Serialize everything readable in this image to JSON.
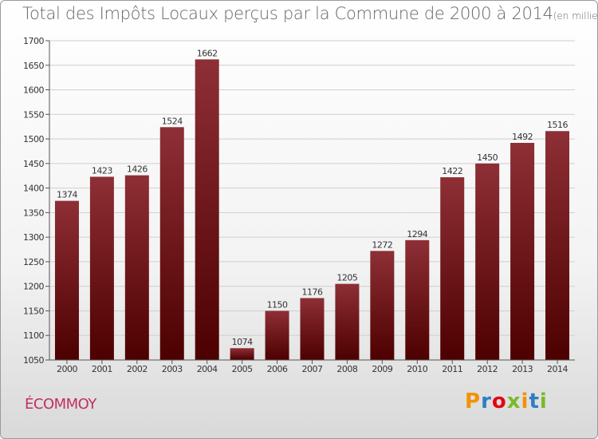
{
  "title": "Total des Impôts Locaux perçus par la Commune de 2000 à 2014",
  "title_unit": "(en milliers d'€)",
  "commune": "ÉCOMMOY",
  "brand": {
    "letters": [
      "P",
      "r",
      "o",
      "x",
      "i",
      "t",
      "i"
    ],
    "colors": [
      "#f39200",
      "#2f7ec2",
      "#e30613",
      "#7ab929",
      "#f39200",
      "#2f7ec2",
      "#7ab929"
    ]
  },
  "colors": {
    "bar_top": "#8e2f36",
    "bar_bottom": "#4d0000",
    "axis": "#555555",
    "grid": "#cfcfcf",
    "text": "#333333"
  },
  "chart_data": {
    "type": "bar",
    "title": "Total des Impôts Locaux perçus par la Commune de 2000 à 2014",
    "xlabel": "",
    "ylabel": "",
    "ylim": [
      1050,
      1700
    ],
    "yticks": [
      1050,
      1100,
      1150,
      1200,
      1250,
      1300,
      1350,
      1400,
      1450,
      1500,
      1550,
      1600,
      1650,
      1700
    ],
    "categories": [
      "2000",
      "2001",
      "2002",
      "2003",
      "2004",
      "2005",
      "2006",
      "2007",
      "2008",
      "2009",
      "2010",
      "2011",
      "2012",
      "2013",
      "2014"
    ],
    "values": [
      1374,
      1423,
      1426,
      1524,
      1662,
      1074,
      1150,
      1176,
      1205,
      1272,
      1294,
      1422,
      1450,
      1492,
      1516
    ]
  }
}
